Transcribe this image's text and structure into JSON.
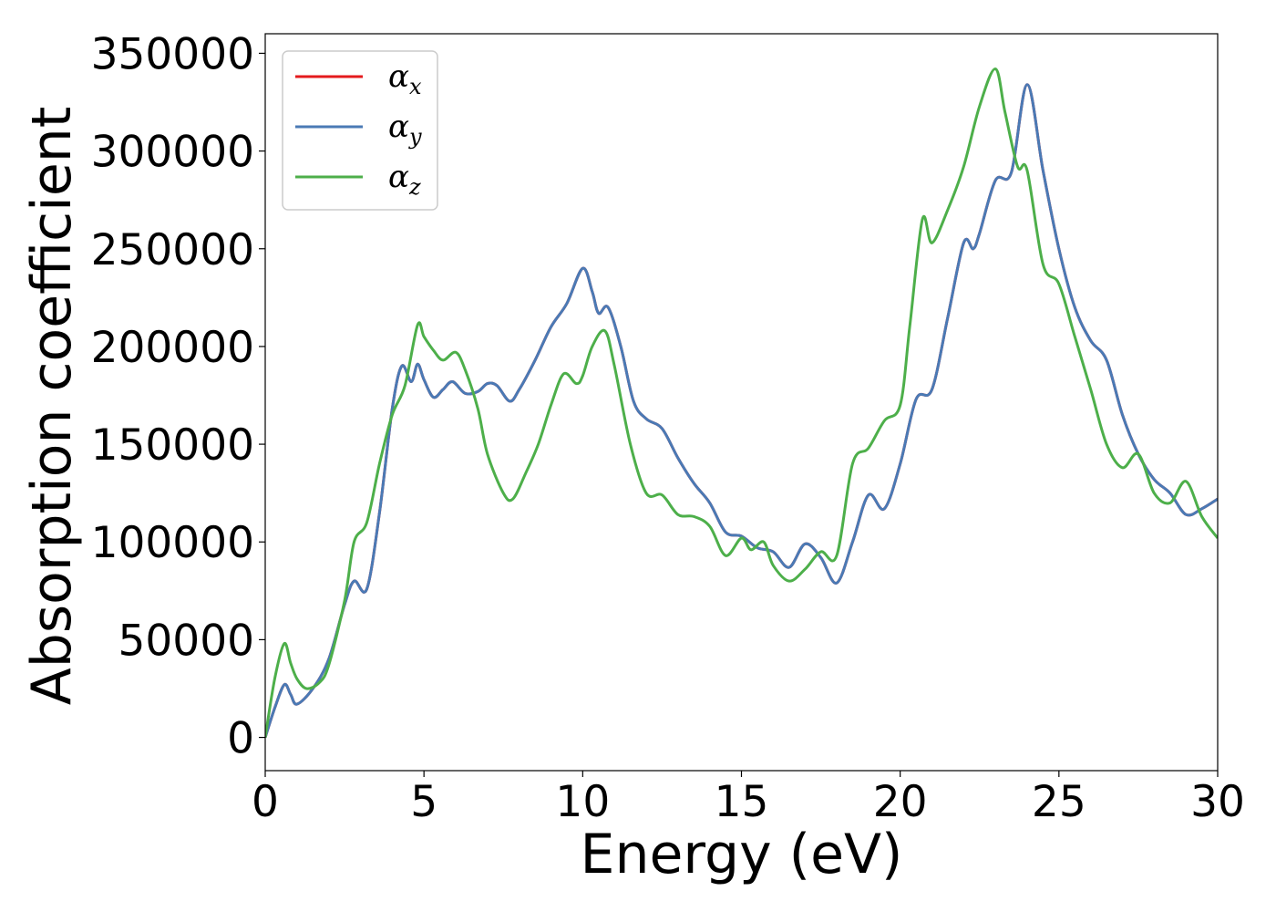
{
  "chart_data": {
    "type": "line",
    "xlabel": "Energy (eV)",
    "ylabel": "Absorption coefficient",
    "xlim": [
      0,
      30
    ],
    "ylim": [
      -17000,
      360000
    ],
    "xticks": [
      0,
      5,
      10,
      15,
      20,
      25,
      30
    ],
    "xtick_labels": [
      "0",
      "5",
      "10",
      "15",
      "20",
      "25",
      "30"
    ],
    "yticks": [
      0,
      50000,
      100000,
      150000,
      200000,
      250000,
      300000,
      350000
    ],
    "ytick_labels": [
      "0",
      "50000",
      "100000",
      "150000",
      "200000",
      "250000",
      "300000",
      "350000"
    ],
    "grid": false,
    "legend_position": "top-left",
    "series": [
      {
        "name": "α_x",
        "label_base": "α",
        "label_sub": "x",
        "color": "#e41a1c",
        "x": [
          0,
          0.3,
          0.6,
          0.8,
          1.0,
          1.5,
          2.0,
          2.5,
          2.8,
          3.2,
          3.6,
          4.0,
          4.3,
          4.6,
          4.8,
          5.0,
          5.3,
          5.6,
          5.9,
          6.3,
          6.7,
          7.0,
          7.3,
          7.7,
          8.0,
          8.5,
          9.0,
          9.5,
          10.0,
          10.3,
          10.5,
          10.8,
          11.2,
          11.6,
          12.0,
          12.5,
          13.0,
          13.5,
          14.0,
          14.5,
          15.0,
          15.5,
          16.0,
          16.5,
          17.0,
          17.5,
          18.0,
          18.5,
          19.0,
          19.5,
          20.0,
          20.5,
          21.0,
          21.5,
          22.0,
          22.3,
          22.5,
          23.0,
          23.5,
          24.0,
          24.5,
          25.0,
          25.5,
          26.0,
          26.5,
          27.0,
          27.5,
          28.0,
          28.5,
          29.0,
          29.5,
          30.0
        ],
        "y": [
          0,
          15000,
          27000,
          22000,
          17000,
          25000,
          40000,
          68000,
          80000,
          76000,
          115000,
          168000,
          190000,
          182000,
          191000,
          183000,
          174000,
          178000,
          182000,
          176000,
          177000,
          181000,
          180000,
          172000,
          178000,
          193000,
          210000,
          222000,
          240000,
          228000,
          217000,
          220000,
          200000,
          172000,
          163000,
          158000,
          143000,
          130000,
          120000,
          105000,
          103000,
          97000,
          95000,
          87000,
          99000,
          92000,
          79000,
          100000,
          124000,
          117000,
          140000,
          173000,
          178000,
          215000,
          253000,
          250000,
          258000,
          285000,
          289000,
          334000,
          290000,
          250000,
          220000,
          203000,
          193000,
          165000,
          145000,
          132000,
          125000,
          114000,
          117000,
          122000
        ]
      },
      {
        "name": "α_y",
        "label_base": "α",
        "label_sub": "y",
        "color": "#4a7ab5",
        "x": [
          0,
          0.3,
          0.6,
          0.8,
          1.0,
          1.5,
          2.0,
          2.5,
          2.8,
          3.2,
          3.6,
          4.0,
          4.3,
          4.6,
          4.8,
          5.0,
          5.3,
          5.6,
          5.9,
          6.3,
          6.7,
          7.0,
          7.3,
          7.7,
          8.0,
          8.5,
          9.0,
          9.5,
          10.0,
          10.3,
          10.5,
          10.8,
          11.2,
          11.6,
          12.0,
          12.5,
          13.0,
          13.5,
          14.0,
          14.5,
          15.0,
          15.5,
          16.0,
          16.5,
          17.0,
          17.5,
          18.0,
          18.5,
          19.0,
          19.5,
          20.0,
          20.5,
          21.0,
          21.5,
          22.0,
          22.3,
          22.5,
          23.0,
          23.5,
          24.0,
          24.5,
          25.0,
          25.5,
          26.0,
          26.5,
          27.0,
          27.5,
          28.0,
          28.5,
          29.0,
          29.5,
          30.0
        ],
        "y": [
          0,
          15000,
          27000,
          22000,
          17000,
          25000,
          40000,
          68000,
          80000,
          76000,
          115000,
          168000,
          190000,
          182000,
          191000,
          183000,
          174000,
          178000,
          182000,
          176000,
          177000,
          181000,
          180000,
          172000,
          178000,
          193000,
          210000,
          222000,
          240000,
          228000,
          217000,
          220000,
          200000,
          172000,
          163000,
          158000,
          143000,
          130000,
          120000,
          105000,
          103000,
          97000,
          95000,
          87000,
          99000,
          92000,
          79000,
          100000,
          124000,
          117000,
          140000,
          173000,
          178000,
          215000,
          253000,
          250000,
          258000,
          285000,
          289000,
          334000,
          290000,
          250000,
          220000,
          203000,
          193000,
          165000,
          145000,
          132000,
          125000,
          114000,
          117000,
          122000
        ]
      },
      {
        "name": "α_z",
        "label_base": "α",
        "label_sub": "z",
        "color": "#4daf4a",
        "x": [
          0,
          0.3,
          0.6,
          0.8,
          1.0,
          1.3,
          1.7,
          2.0,
          2.5,
          2.8,
          3.2,
          3.6,
          4.0,
          4.4,
          4.8,
          5.0,
          5.3,
          5.6,
          6.0,
          6.3,
          6.7,
          7.0,
          7.5,
          7.8,
          8.2,
          8.6,
          9.0,
          9.4,
          9.8,
          10.0,
          10.3,
          10.7,
          11.0,
          11.5,
          12.0,
          12.5,
          13.0,
          13.5,
          14.0,
          14.5,
          15.0,
          15.3,
          15.7,
          16.0,
          16.5,
          17.0,
          17.5,
          18.0,
          18.5,
          19.0,
          19.5,
          20.0,
          20.3,
          20.7,
          21.0,
          21.5,
          22.0,
          22.5,
          23.0,
          23.3,
          23.7,
          24.0,
          24.5,
          25.0,
          25.5,
          26.0,
          26.5,
          27.0,
          27.5,
          28.0,
          28.5,
          29.0,
          29.5,
          30.0
        ],
        "y": [
          0,
          30000,
          48000,
          38000,
          30000,
          25000,
          28000,
          37000,
          70000,
          100000,
          110000,
          140000,
          165000,
          180000,
          211000,
          205000,
          198000,
          193000,
          197000,
          188000,
          168000,
          145000,
          125000,
          122000,
          135000,
          150000,
          170000,
          186000,
          181000,
          185000,
          200000,
          208000,
          190000,
          150000,
          125000,
          124000,
          114000,
          113000,
          108000,
          93000,
          102000,
          96000,
          100000,
          88000,
          80000,
          86000,
          95000,
          93000,
          140000,
          148000,
          162000,
          170000,
          210000,
          265000,
          253000,
          270000,
          292000,
          323000,
          342000,
          320000,
          292000,
          290000,
          242000,
          232000,
          205000,
          178000,
          150000,
          138000,
          145000,
          125000,
          120000,
          131000,
          113000,
          102000
        ]
      }
    ]
  }
}
